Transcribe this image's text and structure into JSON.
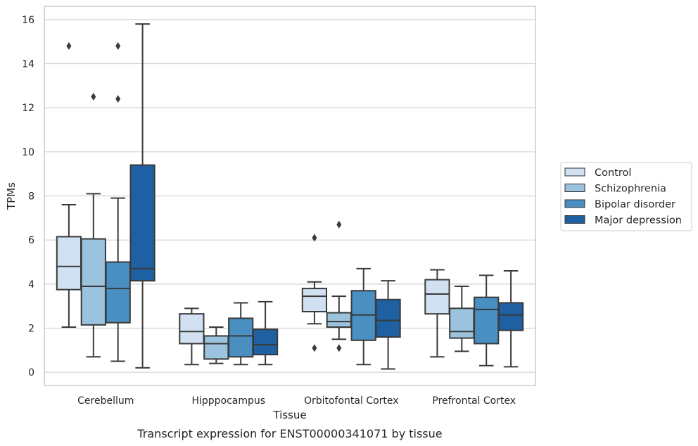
{
  "caption": "Transcript expression for ENST00000341071 by tissue",
  "chart_data": {
    "type": "box",
    "xlabel": "Tissue",
    "ylabel": "TPMs",
    "ylim": [
      -0.6,
      16.6
    ],
    "yticks": [
      0,
      2,
      4,
      6,
      8,
      10,
      12,
      14,
      16
    ],
    "grid": true,
    "legend_position": "right",
    "categories": [
      "Cerebellum",
      "Hipppocampus",
      "Orbitofontal Cortex",
      "Prefrontal Cortex"
    ],
    "series": [
      {
        "name": "Control",
        "color": "#d1e1f1",
        "boxes": [
          {
            "whisker_low": 2.05,
            "q1": 3.75,
            "median": 4.8,
            "q3": 6.15,
            "whisker_high": 7.6,
            "outliers": [
              14.8
            ]
          },
          {
            "whisker_low": 0.35,
            "q1": 1.3,
            "median": 1.85,
            "q3": 2.65,
            "whisker_high": 2.9,
            "outliers": []
          },
          {
            "whisker_low": 2.2,
            "q1": 2.75,
            "median": 3.45,
            "q3": 3.8,
            "whisker_high": 4.1,
            "outliers": [
              6.1,
              1.1
            ]
          },
          {
            "whisker_low": 0.7,
            "q1": 2.65,
            "median": 3.55,
            "q3": 4.2,
            "whisker_high": 4.65,
            "outliers": []
          }
        ]
      },
      {
        "name": "Schizophrenia",
        "color": "#9bc3de",
        "boxes": [
          {
            "whisker_low": 0.7,
            "q1": 2.15,
            "median": 3.9,
            "q3": 6.05,
            "whisker_high": 8.1,
            "outliers": [
              12.5
            ]
          },
          {
            "whisker_low": 0.4,
            "q1": 0.6,
            "median": 1.3,
            "q3": 1.65,
            "whisker_high": 2.05,
            "outliers": []
          },
          {
            "whisker_low": 1.5,
            "q1": 2.05,
            "median": 2.3,
            "q3": 2.7,
            "whisker_high": 3.45,
            "outliers": [
              6.7,
              1.1
            ]
          },
          {
            "whisker_low": 0.95,
            "q1": 1.55,
            "median": 1.85,
            "q3": 2.9,
            "whisker_high": 3.9,
            "outliers": []
          }
        ]
      },
      {
        "name": "Bipolar disorder",
        "color": "#4a8fc2",
        "boxes": [
          {
            "whisker_low": 0.5,
            "q1": 2.25,
            "median": 3.8,
            "q3": 5.0,
            "whisker_high": 7.9,
            "outliers": [
              14.8,
              12.4
            ]
          },
          {
            "whisker_low": 0.35,
            "q1": 0.7,
            "median": 1.65,
            "q3": 2.45,
            "whisker_high": 3.15,
            "outliers": []
          },
          {
            "whisker_low": 0.35,
            "q1": 1.45,
            "median": 2.6,
            "q3": 3.7,
            "whisker_high": 4.7,
            "outliers": []
          },
          {
            "whisker_low": 0.3,
            "q1": 1.3,
            "median": 2.85,
            "q3": 3.4,
            "whisker_high": 4.4,
            "outliers": []
          }
        ]
      },
      {
        "name": "Major depression",
        "color": "#1f60a3",
        "boxes": [
          {
            "whisker_low": 0.2,
            "q1": 4.15,
            "median": 4.7,
            "q3": 9.4,
            "whisker_high": 15.8,
            "outliers": []
          },
          {
            "whisker_low": 0.35,
            "q1": 0.8,
            "median": 1.25,
            "q3": 1.95,
            "whisker_high": 3.2,
            "outliers": []
          },
          {
            "whisker_low": 0.15,
            "q1": 1.6,
            "median": 2.35,
            "q3": 3.3,
            "whisker_high": 4.15,
            "outliers": []
          },
          {
            "whisker_low": 0.25,
            "q1": 1.9,
            "median": 2.6,
            "q3": 3.15,
            "whisker_high": 4.6,
            "outliers": []
          }
        ]
      }
    ]
  }
}
